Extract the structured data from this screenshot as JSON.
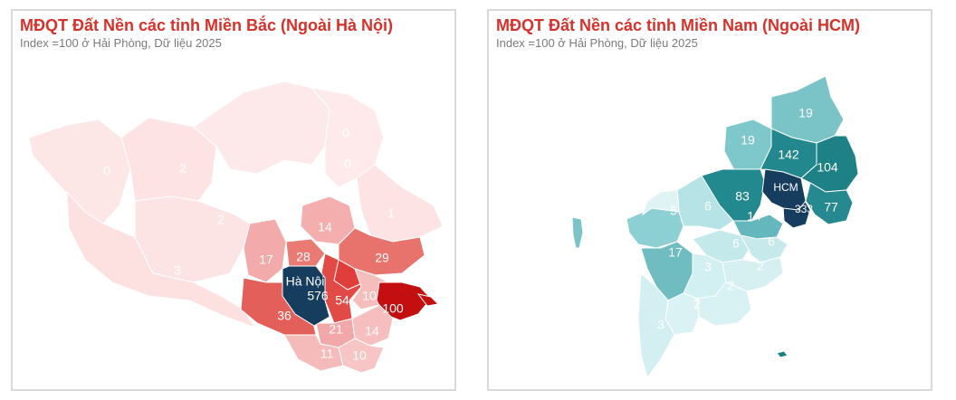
{
  "panels": {
    "north": {
      "title": "MĐQT Đất Nền các tỉnh Miền Bắc (Ngoài Hà Nội)",
      "subtitle": "Index =100 ở Hải Phòng, Dữ liệu 2025",
      "scale_colors": {
        "low": "#fde4e4",
        "mid": "#e8736c",
        "high": "#c40a0a",
        "highlight": "#173d5e"
      },
      "regions": [
        {
          "label": "0"
        },
        {
          "label": "0"
        },
        {
          "label": "2"
        },
        {
          "label": "0"
        },
        {
          "label": "2"
        },
        {
          "label": "3"
        },
        {
          "label": "1"
        },
        {
          "label": "14"
        },
        {
          "label": "17"
        },
        {
          "label": "28"
        },
        {
          "label": "29"
        },
        {
          "label": "Hà Nội"
        },
        {
          "label": "576"
        },
        {
          "label": "54"
        },
        {
          "label": "10"
        },
        {
          "label": "100"
        },
        {
          "label": "36"
        },
        {
          "label": "21"
        },
        {
          "label": "14"
        },
        {
          "label": "11"
        },
        {
          "label": "10"
        }
      ]
    },
    "south": {
      "title": "MĐQT Đất Nền các tỉnh Miền Nam (Ngoài HCM)",
      "subtitle": "Index =100 ở Hải Phòng, Dữ liệu 2025",
      "scale_colors": {
        "low": "#d8f1f3",
        "mid": "#7cc8cc",
        "high": "#1f7f84",
        "highlight": "#173d5e"
      },
      "regions": [
        {
          "label": "19"
        },
        {
          "label": "19"
        },
        {
          "label": "142"
        },
        {
          "label": "104"
        },
        {
          "label": "HCM"
        },
        {
          "label": "83"
        },
        {
          "label": "333"
        },
        {
          "label": "77"
        },
        {
          "label": "5"
        },
        {
          "label": "6"
        },
        {
          "label": "14"
        },
        {
          "label": "17"
        },
        {
          "label": "6"
        },
        {
          "label": "6"
        },
        {
          "label": "3"
        },
        {
          "label": "2"
        },
        {
          "label": "2"
        },
        {
          "label": "2"
        },
        {
          "label": "3"
        }
      ]
    }
  }
}
